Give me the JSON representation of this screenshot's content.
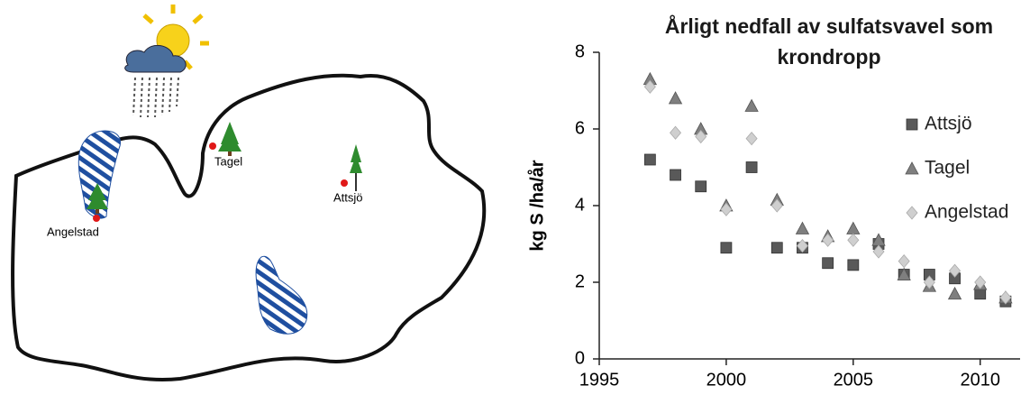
{
  "map": {
    "labels": [
      "Tagel",
      "Attsjö",
      "Angelstad"
    ]
  },
  "chart_data": {
    "type": "scatter",
    "title": "Årligt nedfall av sulfatsvavel som krondropp",
    "y_label": "kg S /ha/år",
    "x": [
      1997,
      1998,
      1999,
      2000,
      2001,
      2002,
      2003,
      2004,
      2005,
      2006,
      2007,
      2008,
      2009,
      2010,
      2011
    ],
    "series": [
      {
        "name": "Attsjö",
        "color": "#595959",
        "marker": "square",
        "values": [
          5.2,
          4.8,
          4.5,
          2.9,
          5.0,
          2.9,
          2.9,
          2.5,
          2.45,
          3.0,
          2.2,
          2.2,
          2.1,
          1.7,
          1.5
        ]
      },
      {
        "name": "Tagel",
        "color": "#7f7f7f",
        "marker": "triangle",
        "values": [
          7.3,
          6.8,
          6.0,
          4.0,
          6.6,
          4.15,
          3.4,
          3.2,
          3.4,
          3.1,
          2.2,
          1.9,
          1.7,
          1.95,
          1.6
        ]
      },
      {
        "name": "Angelstad",
        "color": "#cfcfcf",
        "marker": "diamond",
        "values": [
          7.1,
          5.9,
          5.8,
          3.9,
          5.75,
          4.0,
          2.95,
          3.1,
          3.1,
          2.8,
          2.55,
          2.0,
          2.3,
          2.0,
          1.6
        ]
      }
    ],
    "xlim": [
      1995,
      2011.5
    ],
    "xticks": [
      1995,
      2000,
      2005,
      2010
    ],
    "ylim": [
      0,
      8
    ],
    "yticks": [
      0,
      2,
      4,
      6,
      8
    ],
    "grid": false,
    "legend": "right"
  }
}
